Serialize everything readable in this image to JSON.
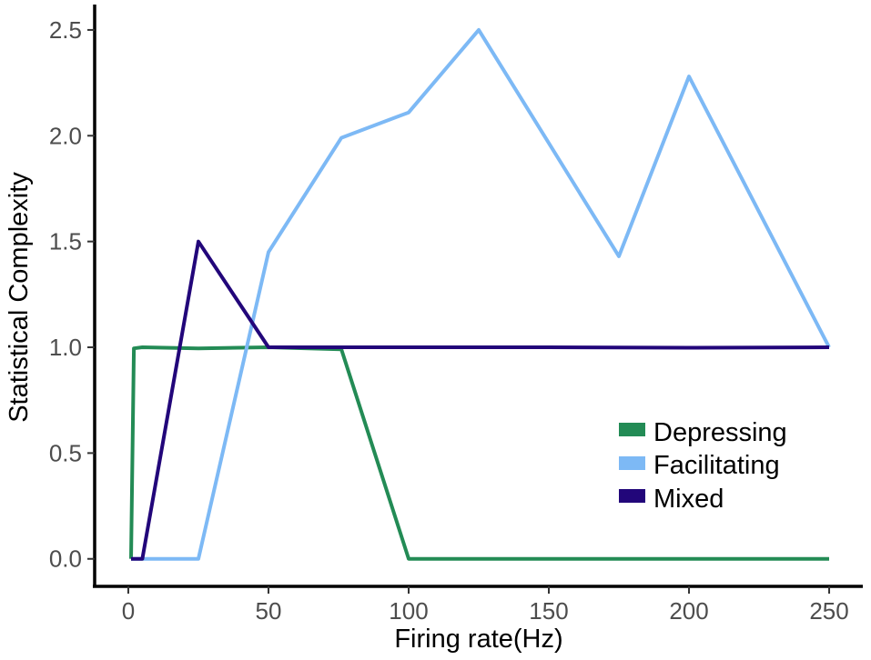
{
  "chart_data": {
    "type": "line",
    "xlabel": "Firing rate(Hz)",
    "ylabel": "Statistical Complexity",
    "xlim": [
      -12,
      262
    ],
    "ylim": [
      -0.13,
      2.62
    ],
    "xticks": [
      0,
      50,
      100,
      150,
      200,
      250
    ],
    "yticks": [
      0.0,
      0.5,
      1.0,
      1.5,
      2.0,
      2.5
    ],
    "xtick_labels": [
      "0",
      "50",
      "100",
      "150",
      "200",
      "250"
    ],
    "ytick_labels": [
      "0.0",
      "0.5",
      "1.0",
      "1.5",
      "2.0",
      "2.5"
    ],
    "grid": false,
    "legend_position": "bottom-right",
    "series": [
      {
        "name": "Depressing",
        "color": "#238b55",
        "points": [
          [
            1,
            0.0
          ],
          [
            2,
            0.995
          ],
          [
            5,
            1.0
          ],
          [
            25,
            0.995
          ],
          [
            50,
            1.0
          ],
          [
            76,
            0.99
          ],
          [
            100,
            0.0
          ],
          [
            250,
            0.0
          ]
        ]
      },
      {
        "name": "Facilitating",
        "color": "#7db9f5",
        "points": [
          [
            1,
            0.0
          ],
          [
            25,
            0.0
          ],
          [
            50,
            1.45
          ],
          [
            76,
            1.99
          ],
          [
            100,
            2.11
          ],
          [
            125,
            2.5
          ],
          [
            175,
            1.43
          ],
          [
            200,
            2.28
          ],
          [
            250,
            1.0
          ]
        ]
      },
      {
        "name": "Mixed",
        "color": "#22067a",
        "points": [
          [
            1,
            0.0
          ],
          [
            5,
            0.0
          ],
          [
            25,
            1.5
          ],
          [
            50,
            1.0
          ],
          [
            100,
            1.0
          ],
          [
            150,
            1.0
          ],
          [
            200,
            0.998
          ],
          [
            250,
            1.0
          ]
        ]
      }
    ]
  }
}
